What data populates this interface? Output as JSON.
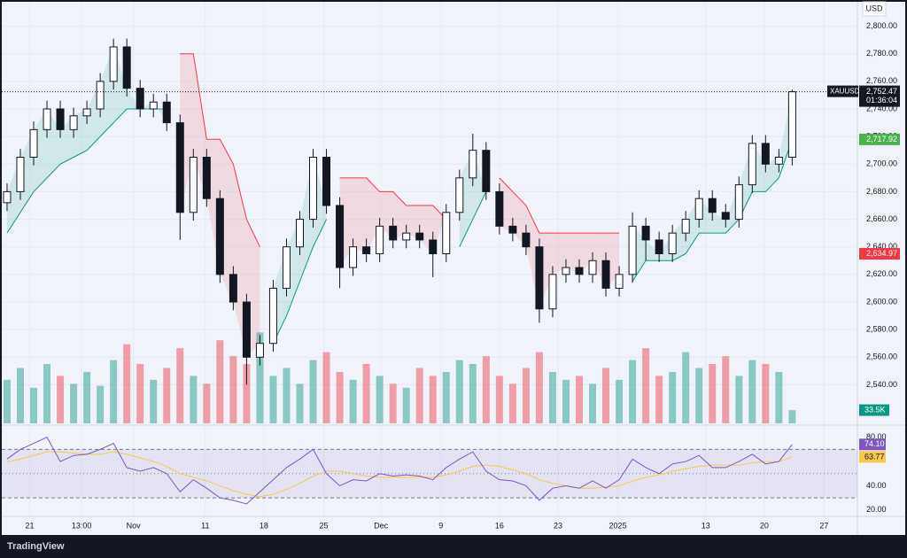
{
  "chart_data": {
    "type": "candlestick",
    "currency": "USD",
    "symbol": "XAUUSD",
    "countdown": "01:36:04",
    "brand": "TradingView",
    "up_color": "#089981",
    "down_color": "#f23645",
    "xlim": [
      -0.53,
      63.9
    ],
    "xticks": [
      {
        "value": 1.7,
        "label": "21"
      },
      {
        "value": 5.6,
        "label": "13:00"
      },
      {
        "value": 9.5,
        "label": "Nov"
      },
      {
        "value": 14.9,
        "label": "11"
      },
      {
        "value": 19.3,
        "label": "18"
      },
      {
        "value": 23.8,
        "label": "25"
      },
      {
        "value": 28.1,
        "label": "Dec"
      },
      {
        "value": 32.6,
        "label": "9"
      },
      {
        "value": 37.0,
        "label": "16"
      },
      {
        "value": 41.4,
        "label": "23"
      },
      {
        "value": 45.9,
        "label": "2025"
      },
      {
        "value": 52.5,
        "label": "13"
      },
      {
        "value": 56.9,
        "label": "20"
      },
      {
        "value": 61.4,
        "label": "27"
      }
    ],
    "ylim": [
      2512,
      2819
    ],
    "yticks": [
      {
        "value": 2540,
        "label": "2,540.00"
      },
      {
        "value": 2560,
        "label": "2,560.00"
      },
      {
        "value": 2580,
        "label": "2,580.00"
      },
      {
        "value": 2600,
        "label": "2,600.00"
      },
      {
        "value": 2620,
        "label": "2,620.00"
      },
      {
        "value": 2640,
        "label": "2,640.00"
      },
      {
        "value": 2660,
        "label": "2,660.00"
      },
      {
        "value": 2680,
        "label": "2,680.00"
      },
      {
        "value": 2700,
        "label": "2,700.00"
      },
      {
        "value": 2720,
        "label": "2,720.00"
      },
      {
        "value": 2740,
        "label": "2,740.00"
      },
      {
        "value": 2760,
        "label": "2,760.00"
      },
      {
        "value": 2780,
        "label": "2,780.00"
      },
      {
        "value": 2800,
        "label": "2,800.00"
      }
    ],
    "open": [
      2672,
      2680,
      2705,
      2725,
      2740,
      2725,
      2735,
      2740,
      2760,
      2785,
      2755,
      2740,
      2745,
      2730,
      2665,
      2705,
      2675,
      2620,
      2600,
      2560,
      2570,
      2610,
      2640,
      2660,
      2705,
      2670,
      2625,
      2640,
      2635,
      2655,
      2645,
      2650,
      2645,
      2635,
      2665,
      2690,
      2710,
      2680,
      2655,
      2650,
      2640,
      2595,
      2620,
      2625,
      2620,
      2630,
      2610,
      2620,
      2655,
      2645,
      2635,
      2650,
      2660,
      2675,
      2665,
      2660,
      2685,
      2715,
      2700,
      2705
    ],
    "high": [
      2686,
      2711,
      2731,
      2746,
      2746,
      2741,
      2746,
      2766,
      2791,
      2791,
      2761,
      2751,
      2751,
      2736,
      2711,
      2711,
      2681,
      2626,
      2606,
      2576,
      2616,
      2646,
      2666,
      2711,
      2711,
      2676,
      2646,
      2646,
      2661,
      2661,
      2656,
      2656,
      2651,
      2671,
      2696,
      2722,
      2716,
      2686,
      2661,
      2656,
      2646,
      2626,
      2631,
      2631,
      2636,
      2636,
      2626,
      2665,
      2661,
      2651,
      2656,
      2666,
      2681,
      2681,
      2671,
      2691,
      2721,
      2721,
      2711,
      2754
    ],
    "low": [
      2666,
      2674,
      2699,
      2719,
      2719,
      2719,
      2729,
      2734,
      2754,
      2749,
      2734,
      2734,
      2724,
      2645,
      2659,
      2669,
      2614,
      2594,
      2540,
      2554,
      2564,
      2604,
      2634,
      2654,
      2664,
      2610,
      2619,
      2629,
      2629,
      2639,
      2639,
      2639,
      2618,
      2629,
      2659,
      2684,
      2674,
      2649,
      2644,
      2634,
      2585,
      2589,
      2614,
      2614,
      2614,
      2604,
      2604,
      2614,
      2630,
      2629,
      2629,
      2644,
      2654,
      2659,
      2654,
      2654,
      2679,
      2694,
      2694,
      2699
    ],
    "close": [
      2680,
      2705,
      2725,
      2740,
      2725,
      2735,
      2740,
      2760,
      2785,
      2755,
      2740,
      2745,
      2730,
      2665,
      2705,
      2675,
      2620,
      2600,
      2560,
      2570,
      2610,
      2640,
      2660,
      2705,
      2670,
      2625,
      2640,
      2635,
      2655,
      2645,
      2650,
      2645,
      2635,
      2665,
      2690,
      2710,
      2680,
      2655,
      2650,
      2640,
      2595,
      2620,
      2625,
      2620,
      2630,
      2610,
      2620,
      2655,
      2645,
      2635,
      2650,
      2660,
      2675,
      2665,
      2660,
      2685,
      2715,
      2700,
      2705,
      2752.47
    ],
    "supertrend_up": [
      2650,
      2665,
      2680,
      2690,
      2700,
      2705,
      2710,
      2720,
      2730,
      2740,
      2740,
      2740,
      2740,
      null,
      null,
      null,
      null,
      null,
      null,
      null,
      2570,
      2590,
      2615,
      2640,
      2660,
      null,
      null,
      null,
      null,
      null,
      null,
      null,
      null,
      null,
      2640,
      2660,
      2680,
      null,
      null,
      null,
      null,
      null,
      null,
      null,
      null,
      null,
      null,
      2615,
      2630,
      2630,
      2630,
      2635,
      2650,
      2650,
      2650,
      2660,
      2680,
      2680,
      2690,
      2717.92
    ],
    "supertrend_down": [
      null,
      null,
      null,
      null,
      null,
      null,
      null,
      null,
      null,
      null,
      null,
      null,
      null,
      2780,
      2780,
      2718,
      2718,
      2700,
      2660,
      2640,
      null,
      null,
      null,
      null,
      null,
      2690,
      2690,
      2690,
      2680,
      2680,
      2670,
      2670,
      2670,
      2660,
      null,
      null,
      null,
      2690,
      2680,
      2670,
      2650,
      2650,
      2650,
      2650,
      2650,
      2650,
      2650,
      null,
      null,
      null,
      null,
      null,
      null,
      null,
      null,
      null,
      null,
      null,
      null,
      null
    ],
    "tags": [
      {
        "value": 2752.47,
        "label": "2,752.47"
      },
      {
        "value": 2717.92,
        "label": "2,717.92"
      },
      {
        "value": 2634.97,
        "label": "2,634.97"
      }
    ],
    "volume": {
      "ylim": [
        0,
        1070
      ],
      "values": [
        110,
        140,
        90,
        150,
        120,
        100,
        130,
        95,
        160,
        200,
        150,
        110,
        140,
        190,
        120,
        100,
        210,
        170,
        150,
        230,
        120,
        140,
        100,
        160,
        180,
        130,
        110,
        150,
        120,
        100,
        90,
        140,
        120,
        130,
        160,
        150,
        170,
        120,
        100,
        140,
        180,
        130,
        110,
        120,
        100,
        140,
        110,
        160,
        190,
        120,
        130,
        180,
        140,
        150,
        170,
        120,
        160,
        150,
        130,
        33.5
      ],
      "tag": {
        "value": 33.5,
        "label": "33.5K"
      }
    },
    "rsi": {
      "line_color": "#7e57c2",
      "ma_color": "#f7c948",
      "ylim": [
        15.5,
        90
      ],
      "yticks": [
        {
          "value": 20,
          "label": "20.00"
        },
        {
          "value": 40,
          "label": "40.00"
        },
        {
          "value": 80,
          "label": "80.00"
        }
      ],
      "bands": {
        "upper": 70,
        "middle": 50,
        "lower": 30
      },
      "values": [
        62,
        70,
        75,
        80,
        60,
        65,
        66,
        70,
        75,
        55,
        52,
        55,
        50,
        35,
        45,
        38,
        30,
        28,
        25,
        35,
        45,
        55,
        62,
        70,
        50,
        40,
        45,
        44,
        50,
        48,
        49,
        48,
        45,
        55,
        62,
        68,
        52,
        45,
        44,
        40,
        28,
        38,
        40,
        38,
        44,
        38,
        45,
        62,
        55,
        50,
        58,
        60,
        65,
        55,
        55,
        60,
        66,
        58,
        60,
        74.1
      ],
      "ma": [
        60,
        62,
        65,
        68,
        68,
        67,
        66,
        66,
        68,
        66,
        63,
        60,
        56,
        50,
        47,
        44,
        40,
        36,
        33,
        31,
        33,
        37,
        42,
        48,
        52,
        52,
        50,
        48,
        47,
        47,
        47,
        47,
        47,
        49,
        52,
        56,
        57,
        56,
        53,
        50,
        45,
        42,
        40,
        38,
        38,
        39,
        40,
        44,
        47,
        49,
        52,
        54,
        56,
        57,
        57,
        57,
        59,
        60,
        60,
        63.77
      ],
      "tags": [
        {
          "value": 74.1,
          "label": "74.10"
        },
        {
          "value": 63.77,
          "label": "63.77"
        }
      ]
    }
  }
}
